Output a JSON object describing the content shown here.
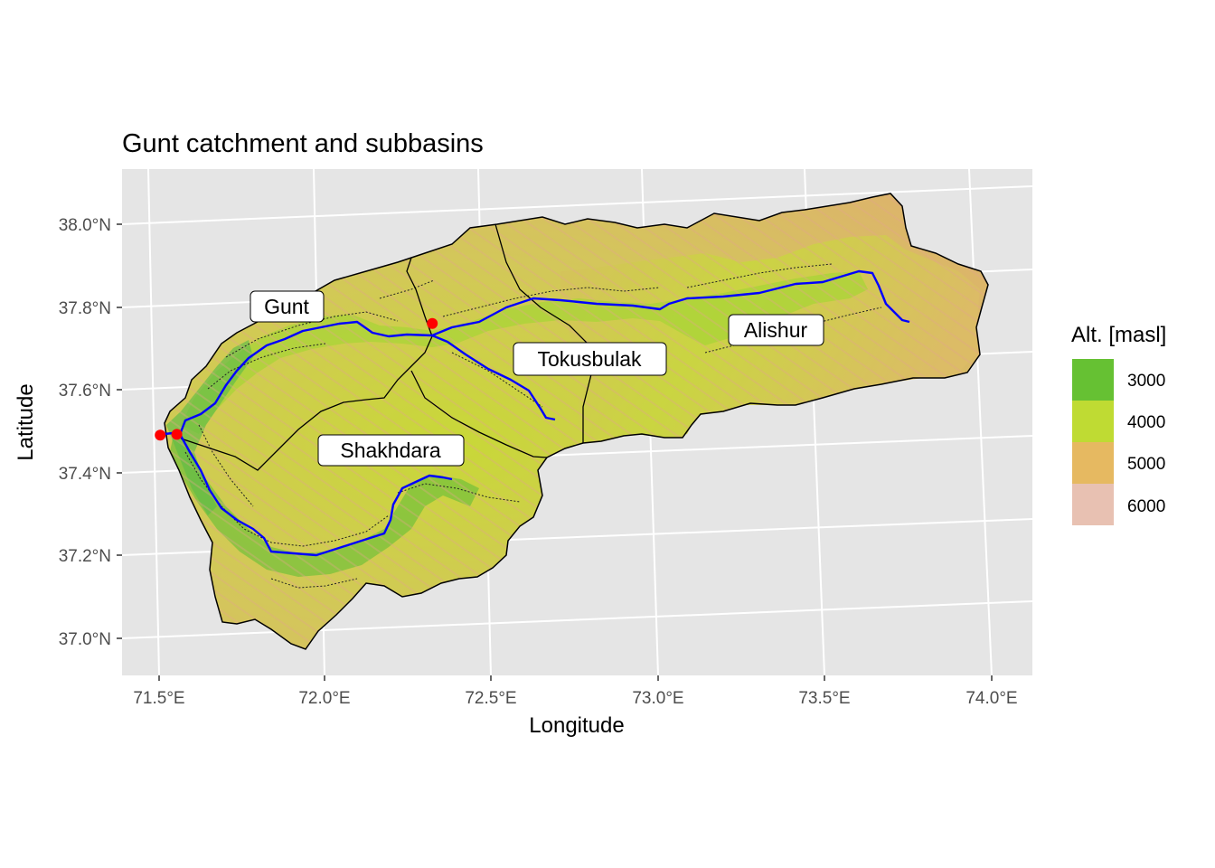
{
  "plot": {
    "title": "Gunt catchment and subbasins",
    "xlabel": "Longitude",
    "ylabel": "Latitude"
  },
  "axes": {
    "x_ticks": [
      "71.5°E",
      "72.0°E",
      "72.5°E",
      "73.0°E",
      "73.5°E",
      "74.0°E"
    ],
    "y_ticks": [
      "38.0°N",
      "37.8°N",
      "37.6°N",
      "37.4°N",
      "37.2°N",
      "37.0°N"
    ]
  },
  "subbasins": [
    {
      "name": "Gunt",
      "lon": 71.93,
      "lat": 37.79
    },
    {
      "name": "Tokusbulak",
      "lon": 72.58,
      "lat": 37.67
    },
    {
      "name": "Alishur",
      "lon": 73.32,
      "lat": 37.74
    },
    {
      "name": "Shakhdara",
      "lon": 72.18,
      "lat": 37.45
    }
  ],
  "gauges": [
    {
      "lon": 71.52,
      "lat": 37.49
    },
    {
      "lon": 71.57,
      "lat": 37.49
    },
    {
      "lon": 72.33,
      "lat": 37.73
    }
  ],
  "legend": {
    "title": "Alt. [masl]",
    "items": [
      {
        "label": "3000",
        "color": "#66c133"
      },
      {
        "label": "4000",
        "color": "#bfdb33"
      },
      {
        "label": "5000",
        "color": "#e6b961"
      },
      {
        "label": "6000",
        "color": "#e8c1b2"
      }
    ]
  },
  "colors": {
    "panel_background": "#e5e5e5",
    "grid": "#ffffff",
    "river": "#0000ff",
    "gauge": "#ff0000",
    "boundary": "#000000"
  }
}
